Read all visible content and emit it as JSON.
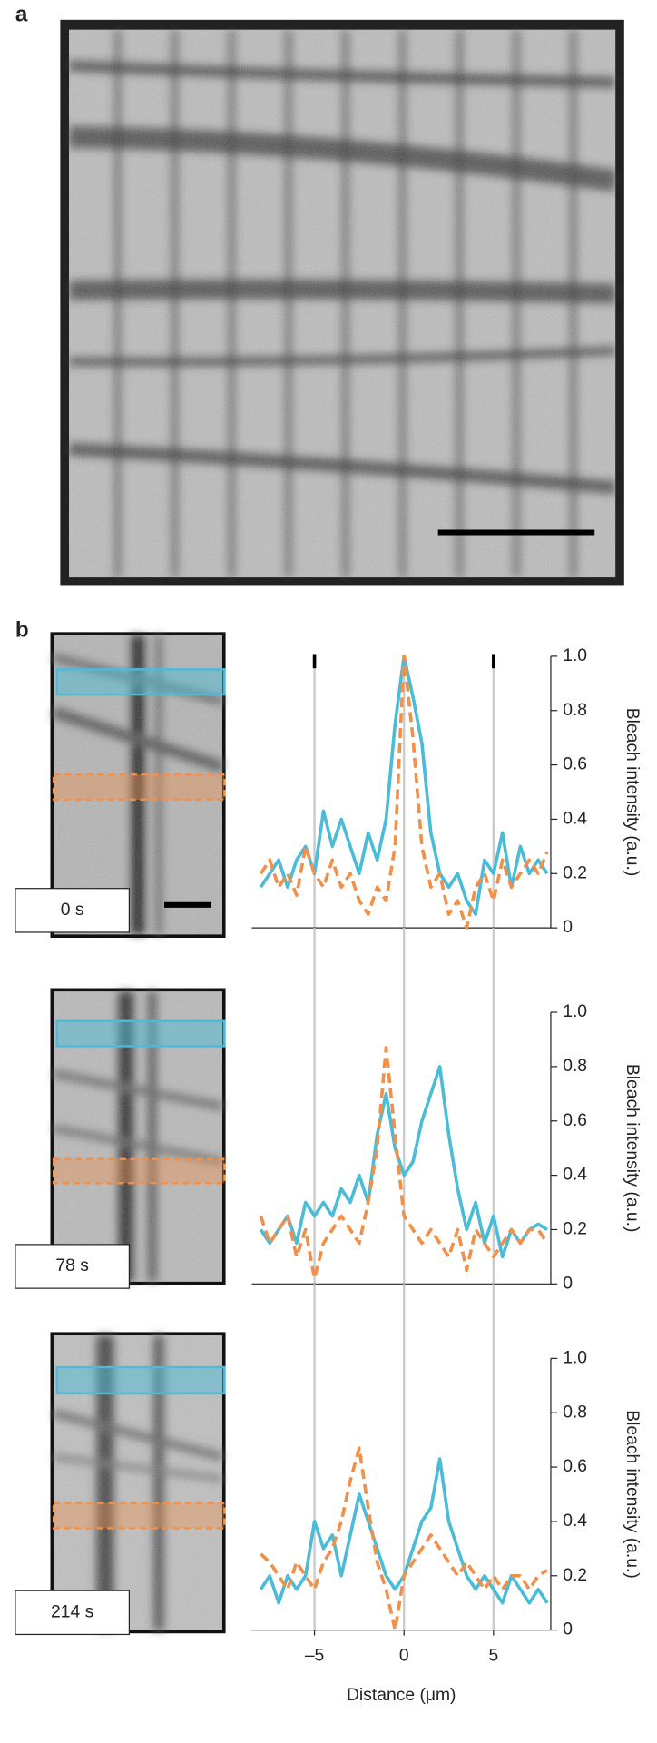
{
  "labels": [
    "a",
    "b"
  ],
  "chart_data": [
    {
      "type": "line",
      "annotation": "0 s",
      "ylabel": "Bleach intensity (a.u.)",
      "xlim": [
        -8.5,
        8.2
      ],
      "ylim": [
        0,
        1
      ],
      "xgrid": [
        -5,
        0,
        5
      ],
      "top_markers": [
        -5,
        5
      ],
      "yticks": [
        0,
        0.2,
        0.4,
        0.6,
        0.8,
        {
          "value": 1,
          "label": "1.0"
        }
      ],
      "x": [
        -8,
        -7.5,
        -7,
        -6.5,
        -6,
        -5.5,
        -5,
        -4.5,
        -4,
        -3.5,
        -3,
        -2.5,
        -2,
        -1.5,
        -1,
        -0.5,
        0,
        0.5,
        1,
        1.5,
        2,
        2.5,
        3,
        3.5,
        4,
        4.5,
        5,
        5.5,
        6,
        6.5,
        7,
        7.5,
        8
      ],
      "series": [
        {
          "color": "#4bbcd8",
          "dashed": false,
          "values": [
            0.15,
            0.2,
            0.25,
            0.15,
            0.25,
            0.3,
            0.2,
            0.43,
            0.3,
            0.4,
            0.3,
            0.2,
            0.35,
            0.25,
            0.4,
            0.75,
            1.0,
            0.85,
            0.68,
            0.35,
            0.2,
            0.15,
            0.2,
            0.1,
            0.05,
            0.25,
            0.2,
            0.35,
            0.15,
            0.3,
            0.2,
            0.25,
            0.2
          ]
        },
        {
          "color": "#f0904a",
          "dashed": true,
          "values": [
            0.2,
            0.25,
            0.15,
            0.2,
            0.12,
            0.3,
            0.2,
            0.15,
            0.25,
            0.15,
            0.2,
            0.1,
            0.05,
            0.15,
            0.1,
            0.3,
            1.0,
            0.7,
            0.3,
            0.15,
            0.2,
            0.05,
            0.1,
            0.0,
            0.15,
            0.2,
            0.1,
            0.25,
            0.15,
            0.2,
            0.25,
            0.2,
            0.28
          ]
        }
      ]
    },
    {
      "type": "line",
      "annotation": "78 s",
      "ylabel": "Bleach intensity (a.u.)",
      "xlim": [
        -8.5,
        8.2
      ],
      "ylim": [
        0,
        1
      ],
      "xgrid": [
        -5,
        0,
        5
      ],
      "yticks": [
        0,
        0.2,
        0.4,
        0.6,
        0.8,
        {
          "value": 1,
          "label": "1.0"
        }
      ],
      "x": [
        -8,
        -7.5,
        -7,
        -6.5,
        -6,
        -5.5,
        -5,
        -4.5,
        -4,
        -3.5,
        -3,
        -2.5,
        -2,
        -1.5,
        -1,
        -0.5,
        0,
        0.5,
        1,
        1.5,
        2,
        2.5,
        3,
        3.5,
        4,
        4.5,
        5,
        5.5,
        6,
        6.5,
        7,
        7.5,
        8
      ],
      "series": [
        {
          "color": "#4bbcd8",
          "dashed": false,
          "values": [
            0.2,
            0.15,
            0.2,
            0.25,
            0.15,
            0.3,
            0.25,
            0.3,
            0.25,
            0.35,
            0.3,
            0.4,
            0.3,
            0.55,
            0.7,
            0.5,
            0.4,
            0.45,
            0.6,
            0.7,
            0.8,
            0.55,
            0.35,
            0.2,
            0.3,
            0.15,
            0.25,
            0.1,
            0.2,
            0.15,
            0.2,
            0.22,
            0.2
          ]
        },
        {
          "color": "#f0904a",
          "dashed": true,
          "values": [
            0.25,
            0.15,
            0.2,
            0.25,
            0.1,
            0.2,
            0.02,
            0.15,
            0.2,
            0.25,
            0.2,
            0.15,
            0.3,
            0.5,
            0.87,
            0.55,
            0.25,
            0.2,
            0.15,
            0.2,
            0.15,
            0.1,
            0.2,
            0.05,
            0.2,
            0.15,
            0.1,
            0.15,
            0.2,
            0.15,
            0.2,
            0.2,
            0.15
          ]
        }
      ]
    },
    {
      "type": "line",
      "annotation": "214 s",
      "ylabel": "Bleach intensity (a.u.)",
      "xlabel": "Distance (μm)",
      "xlim": [
        -8.5,
        8.2
      ],
      "ylim": [
        0,
        1
      ],
      "grid": true,
      "xticks": [
        {
          "value": -5,
          "label": "–5"
        },
        0,
        5
      ],
      "yticks": [
        0,
        0.2,
        0.4,
        0.6,
        0.8,
        {
          "value": 1,
          "label": "1.0"
        }
      ],
      "x": [
        -8,
        -7.5,
        -7,
        -6.5,
        -6,
        -5.5,
        -5,
        -4.5,
        -4,
        -3.5,
        -3,
        -2.5,
        -2,
        -1.5,
        -1,
        -0.5,
        0,
        0.5,
        1,
        1.5,
        2,
        2.5,
        3,
        3.5,
        4,
        4.5,
        5,
        5.5,
        6,
        6.5,
        7,
        7.5,
        8
      ],
      "series": [
        {
          "color": "#4bbcd8",
          "dashed": false,
          "values": [
            0.15,
            0.2,
            0.1,
            0.2,
            0.15,
            0.2,
            0.4,
            0.3,
            0.35,
            0.2,
            0.35,
            0.5,
            0.4,
            0.3,
            0.2,
            0.15,
            0.2,
            0.3,
            0.4,
            0.45,
            0.63,
            0.4,
            0.3,
            0.2,
            0.15,
            0.2,
            0.15,
            0.1,
            0.2,
            0.15,
            0.1,
            0.15,
            0.1
          ]
        },
        {
          "color": "#f0904a",
          "dashed": true,
          "values": [
            0.28,
            0.25,
            0.2,
            0.15,
            0.25,
            0.2,
            0.15,
            0.25,
            0.3,
            0.4,
            0.55,
            0.67,
            0.45,
            0.25,
            0.15,
            0.0,
            0.2,
            0.25,
            0.3,
            0.35,
            0.3,
            0.25,
            0.2,
            0.25,
            0.2,
            0.15,
            0.2,
            0.15,
            0.2,
            0.2,
            0.15,
            0.2,
            0.22
          ]
        }
      ]
    }
  ]
}
